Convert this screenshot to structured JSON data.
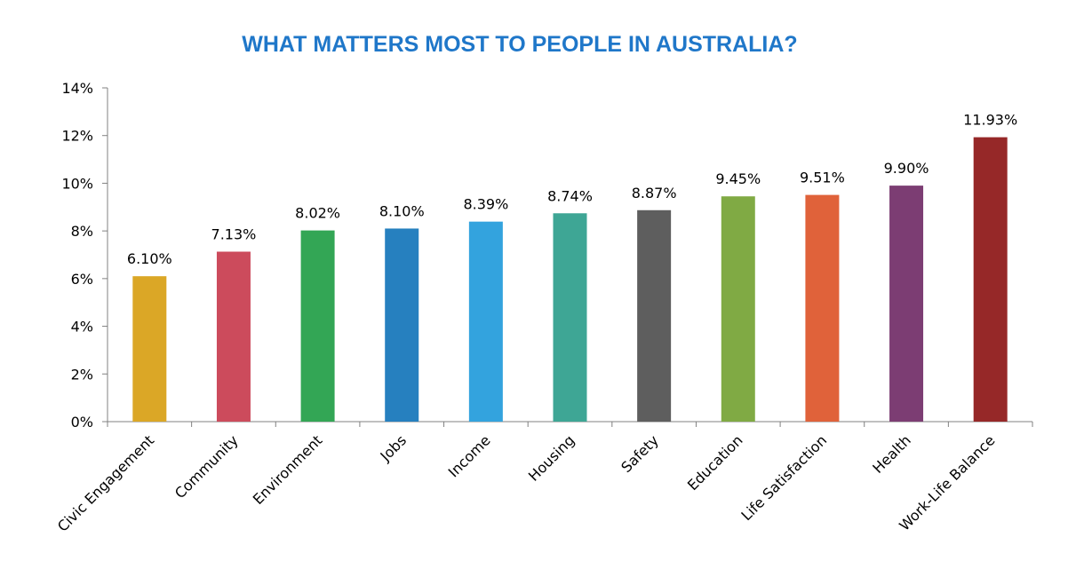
{
  "chart_data": {
    "type": "bar",
    "title": "WHAT MATTERS MOST TO PEOPLE IN AUSTRALIA?",
    "title_color": "#1f77c9",
    "categories": [
      "Civic Engagement",
      "Community",
      "Environment",
      "Jobs",
      "Income",
      "Housing",
      "Safety",
      "Education",
      "Life Satisfaction",
      "Health",
      "Work-Life Balance"
    ],
    "values": [
      6.1,
      7.13,
      8.02,
      8.1,
      8.39,
      8.74,
      8.87,
      9.45,
      9.51,
      9.9,
      11.93
    ],
    "value_labels": [
      "6.10%",
      "7.13%",
      "8.02%",
      "8.10%",
      "8.39%",
      "8.74%",
      "8.87%",
      "9.45%",
      "9.51%",
      "9.90%",
      "11.93%"
    ],
    "colors": [
      "#dba726",
      "#cc4b5c",
      "#33a655",
      "#2680bf",
      "#33a3de",
      "#3ea695",
      "#5e5e5e",
      "#80aa44",
      "#e0623a",
      "#7c3d73",
      "#962828"
    ],
    "y_ticks": [
      "0%",
      "2%",
      "4%",
      "6%",
      "8%",
      "10%",
      "12%",
      "14%"
    ],
    "ylim": [
      0,
      14
    ],
    "xlabel": "",
    "ylabel": "",
    "grid": false,
    "legend": "none"
  }
}
